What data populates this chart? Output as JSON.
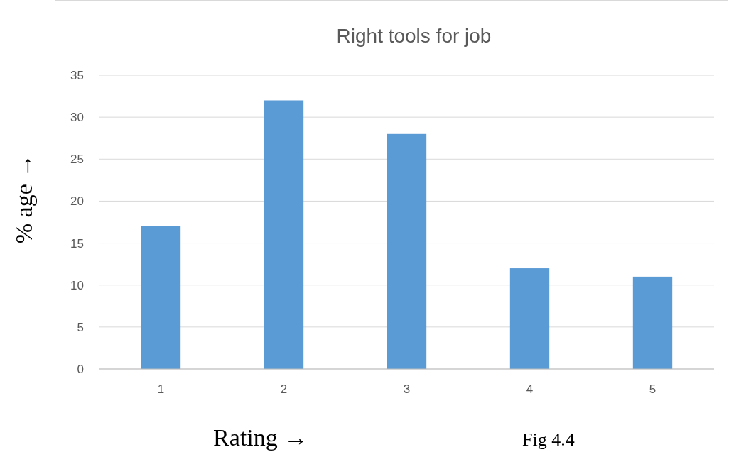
{
  "chart_data": {
    "type": "bar",
    "title": "Right tools for job",
    "xlabel": "Rating →",
    "ylabel": "% age →",
    "categories": [
      "1",
      "2",
      "3",
      "4",
      "5"
    ],
    "values": [
      17,
      32,
      28,
      12,
      11
    ],
    "color": "#5b9bd5",
    "ylim": [
      0,
      35
    ],
    "yticks": [
      0,
      5,
      10,
      15,
      20,
      25,
      30,
      35
    ],
    "grid": "y",
    "annotations": [
      "Fig 4.4"
    ]
  }
}
